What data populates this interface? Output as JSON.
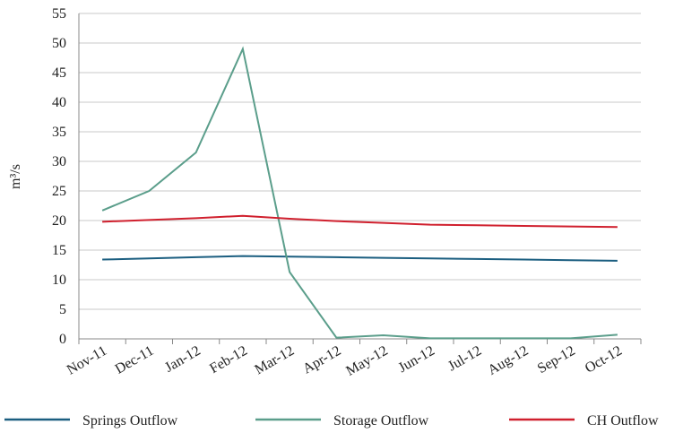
{
  "chart_data": {
    "type": "line",
    "y_label": "m³/s",
    "categories": [
      "Nov-11",
      "Dec-11",
      "Jan-12",
      "Feb-12",
      "Mar-12",
      "Apr-12",
      "May-12",
      "Jun-12",
      "Jul-12",
      "Aug-12",
      "Sep-12",
      "Oct-12"
    ],
    "series": [
      {
        "name": "Springs Outflow",
        "color": "#1b5e80",
        "values": [
          13.4,
          13.6,
          13.8,
          14.0,
          13.9,
          13.8,
          13.7,
          13.6,
          13.5,
          13.4,
          13.3,
          13.2
        ]
      },
      {
        "name": "Storage Outflow",
        "color": "#5b9e8b",
        "values": [
          21.7,
          25,
          31.5,
          49,
          11.3,
          0.2,
          0.6,
          0.1,
          0.1,
          0.1,
          0.1,
          0.7
        ]
      },
      {
        "name": "CH Outflow",
        "color": "#d0202e",
        "values": [
          19.8,
          20.1,
          20.4,
          20.8,
          20.3,
          19.9,
          19.6,
          19.3,
          19.2,
          19.1,
          19.0,
          18.9
        ]
      }
    ],
    "ylim": [
      0,
      55
    ],
    "yticks": [
      0,
      5,
      10,
      15,
      20,
      25,
      30,
      35,
      40,
      45,
      50,
      55
    ],
    "grid": true,
    "legend": "bottom"
  }
}
